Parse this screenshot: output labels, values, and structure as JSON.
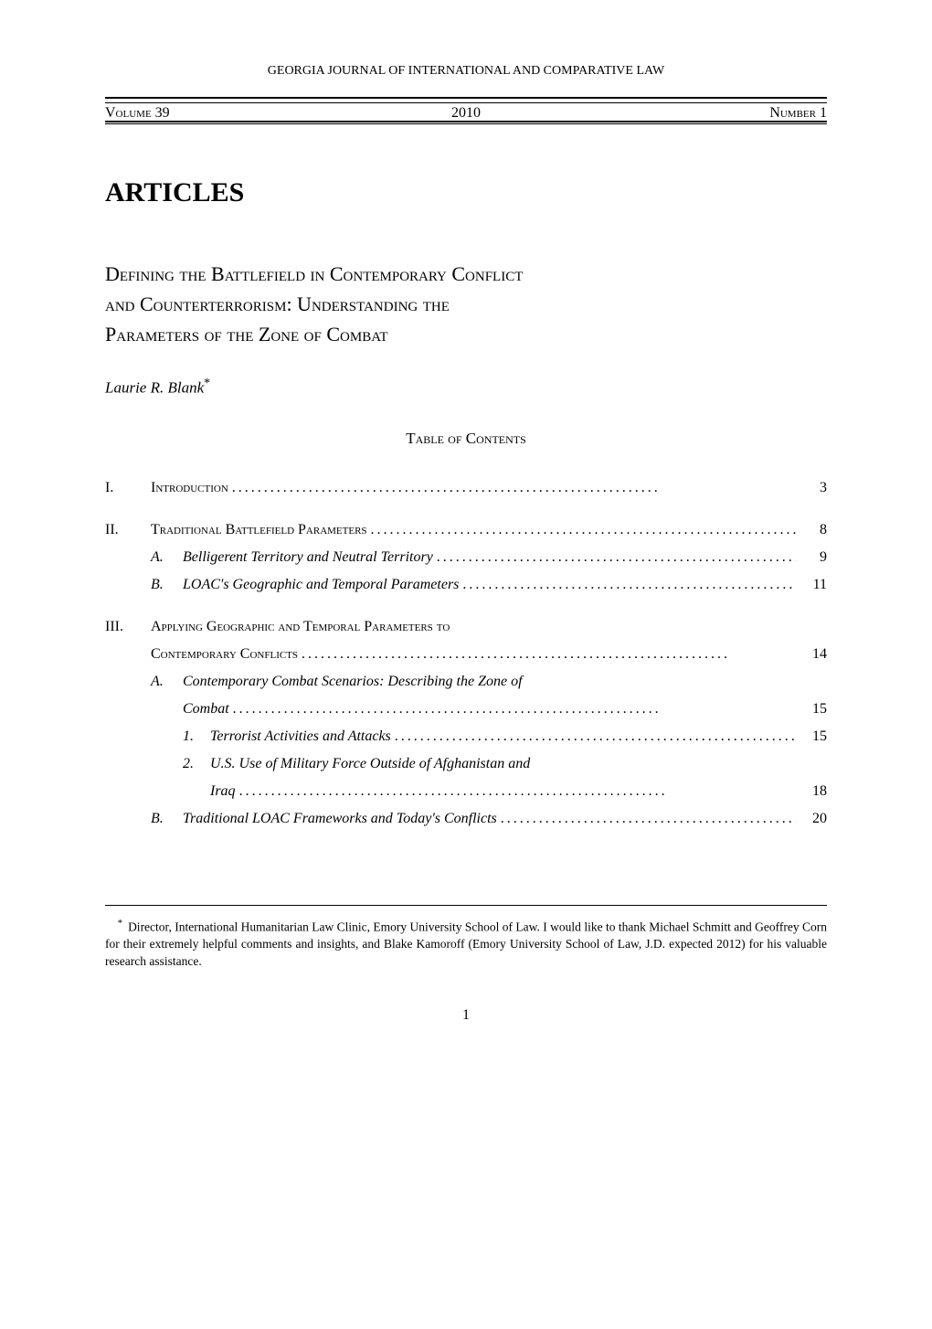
{
  "journal_name": "GEORGIA JOURNAL OF INTERNATIONAL AND COMPARATIVE LAW",
  "volume_bar": {
    "volume": "Volume 39",
    "year": "2010",
    "number": "Number 1"
  },
  "section_heading": "ARTICLES",
  "article_title_line1": "Defining the Battlefield in Contemporary Conflict",
  "article_title_line2": "and Counterterrorism: Understanding the",
  "article_title_line3": "Parameters of the Zone of Combat",
  "author_name": "Laurie R. Blank",
  "author_marker": "*",
  "toc_heading": "Table of Contents",
  "toc": {
    "intro": {
      "roman": "I.",
      "text": "Introduction",
      "page": "3"
    },
    "section2": {
      "roman": "II.",
      "text": "Traditional Battlefield Parameters",
      "page": "8",
      "subA": {
        "letter": "A.",
        "text": "Belligerent Territory and Neutral Territory",
        "page": "9"
      },
      "subB": {
        "letter": "B.",
        "text": "LOAC's Geographic and Temporal Parameters",
        "page": "11"
      }
    },
    "section3": {
      "roman": "III.",
      "text_line1": "Applying Geographic and Temporal Parameters to",
      "text_line2": "Contemporary Conflicts",
      "page": "14",
      "subA": {
        "letter": "A.",
        "text_line1": "Contemporary Combat Scenarios: Describing the Zone of",
        "text_line2": "Combat",
        "page": "15",
        "sub1": {
          "number": "1.",
          "text": "Terrorist Activities and Attacks",
          "page": "15"
        },
        "sub2": {
          "number": "2.",
          "text_line1": "U.S. Use of Military Force Outside of Afghanistan and",
          "text_line2": "Iraq",
          "page": "18"
        }
      },
      "subB": {
        "letter": "B.",
        "text": "Traditional LOAC Frameworks and Today's Conflicts",
        "page": "20"
      }
    }
  },
  "footnote": {
    "marker": "*",
    "text": "Director, International Humanitarian Law Clinic, Emory University School of Law. I would like to thank Michael Schmitt and Geoffrey Corn for their extremely helpful comments and insights, and Blake Kamoroff (Emory University School of Law, J.D. expected 2012) for his valuable research assistance."
  },
  "page_number": "1",
  "dots": "...................................................................",
  "colors": {
    "text": "#000000",
    "background": "#ffffff",
    "border": "#000000"
  },
  "typography": {
    "body_family": "Georgia, Times New Roman, serif",
    "journal_header_size": 14,
    "volume_bar_size": 16,
    "articles_heading_size": 30,
    "title_size": 22,
    "author_size": 17,
    "toc_heading_size": 17,
    "toc_body_size": 16,
    "footnote_size": 13.5,
    "page_number_size": 16
  }
}
